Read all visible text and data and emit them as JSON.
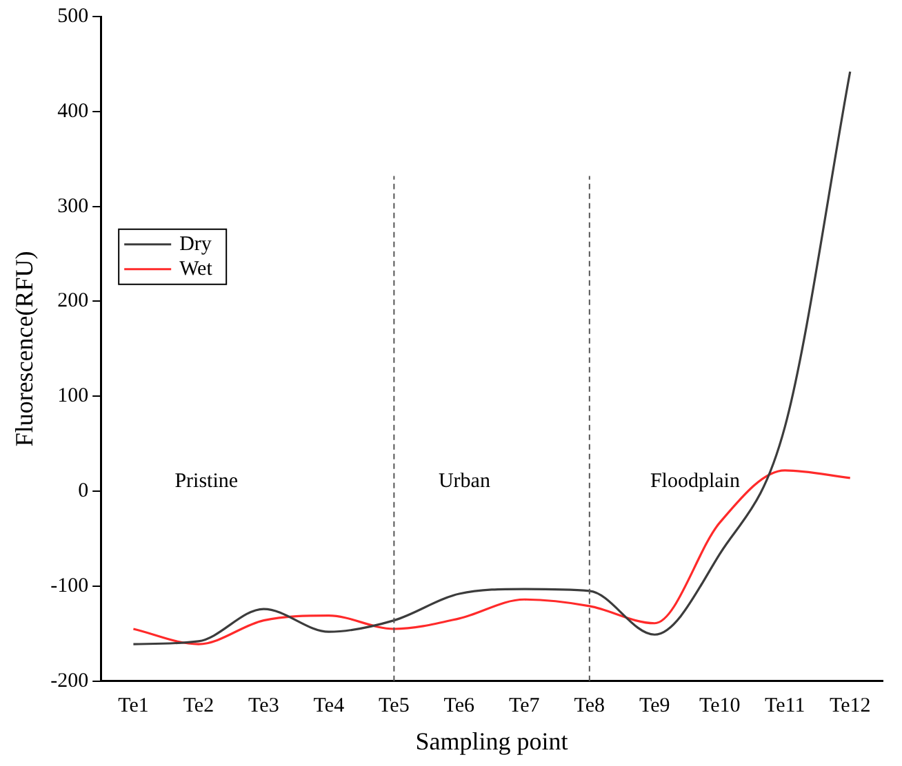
{
  "chart_data": {
    "type": "line",
    "xlabel": "Sampling point",
    "ylabel": "Fluorescence(RFU)",
    "categories": [
      "Te1",
      "Te2",
      "Te3",
      "Te4",
      "Te5",
      "Te6",
      "Te7",
      "Te8",
      "Te9",
      "Te10",
      "Te11",
      "Te12"
    ],
    "series": [
      {
        "name": "Dry",
        "color": "#3c3c3c",
        "values": [
          -161,
          -158,
          -124,
          -148,
          -136,
          -108,
          -103,
          -105,
          -151,
          -66,
          68,
          442
        ]
      },
      {
        "name": "Wet",
        "color": "#ff2a2a",
        "values": [
          -145,
          -161,
          -136,
          -131,
          -145,
          -134,
          -114,
          -121,
          -139,
          -33,
          22,
          14
        ]
      }
    ],
    "ylim": [
      -200,
      500
    ],
    "yticks": [
      -200,
      -100,
      0,
      100,
      200,
      300,
      400,
      500
    ],
    "ref_lines": [
      {
        "axis": "x",
        "value": "Te5",
        "color": "#555555",
        "line_style": "dashed"
      },
      {
        "axis": "x",
        "value": "Te8",
        "color": "#555555",
        "line_style": "dashed"
      }
    ],
    "annotations": [
      "Pristine",
      "Urban",
      "Floodplain"
    ],
    "grid": false,
    "legend": "top left",
    "marker": "none",
    "line_style": "solid"
  }
}
